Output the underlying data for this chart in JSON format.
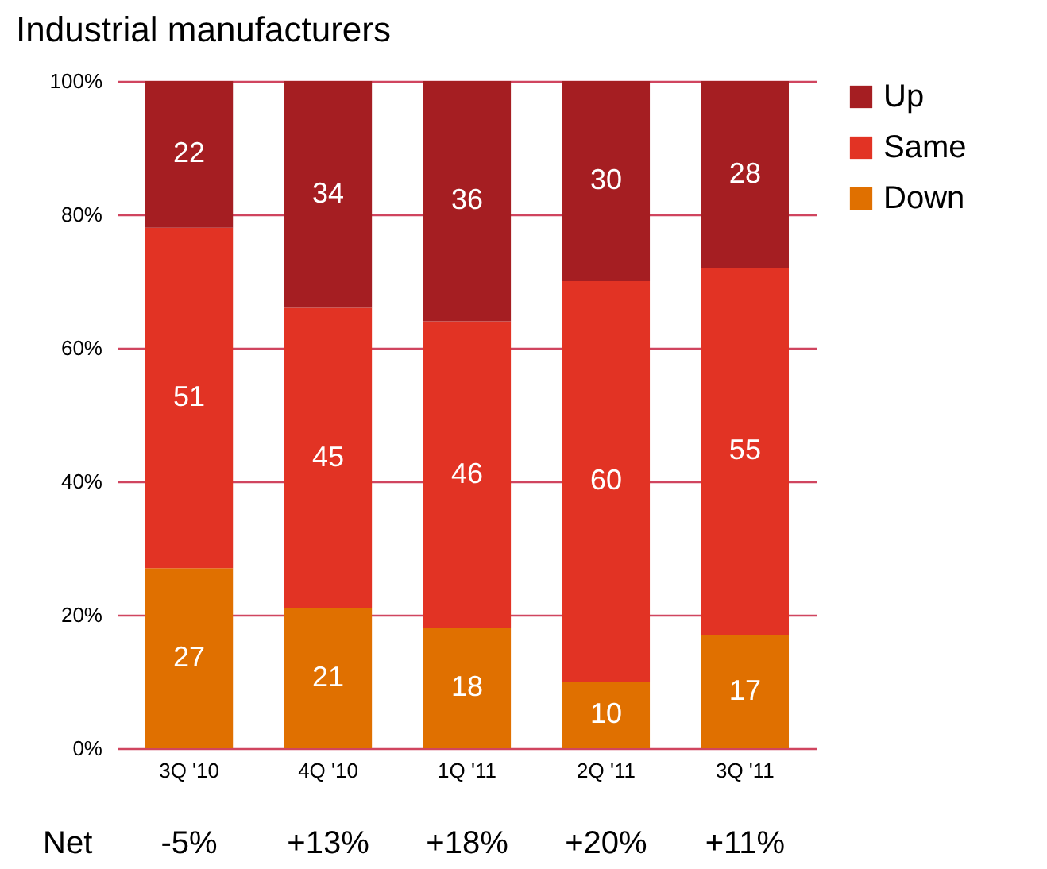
{
  "chart_data": {
    "type": "bar",
    "title": "Industrial manufacturers",
    "stacked": true,
    "data_labels": true,
    "grid": "y",
    "legend": "top right",
    "categories": [
      "3Q '10",
      "4Q '10",
      "1Q '11",
      "2Q '11",
      "3Q '11"
    ],
    "series": [
      {
        "name": "Down",
        "color": "#e07000",
        "values": [
          27,
          21,
          18,
          10,
          17
        ]
      },
      {
        "name": "Same",
        "color": "#e23324",
        "values": [
          51,
          45,
          46,
          60,
          55
        ]
      },
      {
        "name": "Up",
        "color": "#a51e22",
        "values": [
          22,
          34,
          36,
          30,
          28
        ]
      }
    ],
    "ylim": [
      0,
      100
    ],
    "yticks": [
      {
        "value": 0,
        "label": "0%"
      },
      {
        "value": 20,
        "label": "20%"
      },
      {
        "value": 40,
        "label": "40%"
      },
      {
        "value": 60,
        "label": "60%"
      },
      {
        "value": 80,
        "label": "80%"
      },
      {
        "value": 100,
        "label": "100%"
      }
    ],
    "annotations": [
      "Net",
      "-5%",
      "+13%",
      "+18%",
      "+20%",
      "+11%"
    ]
  }
}
